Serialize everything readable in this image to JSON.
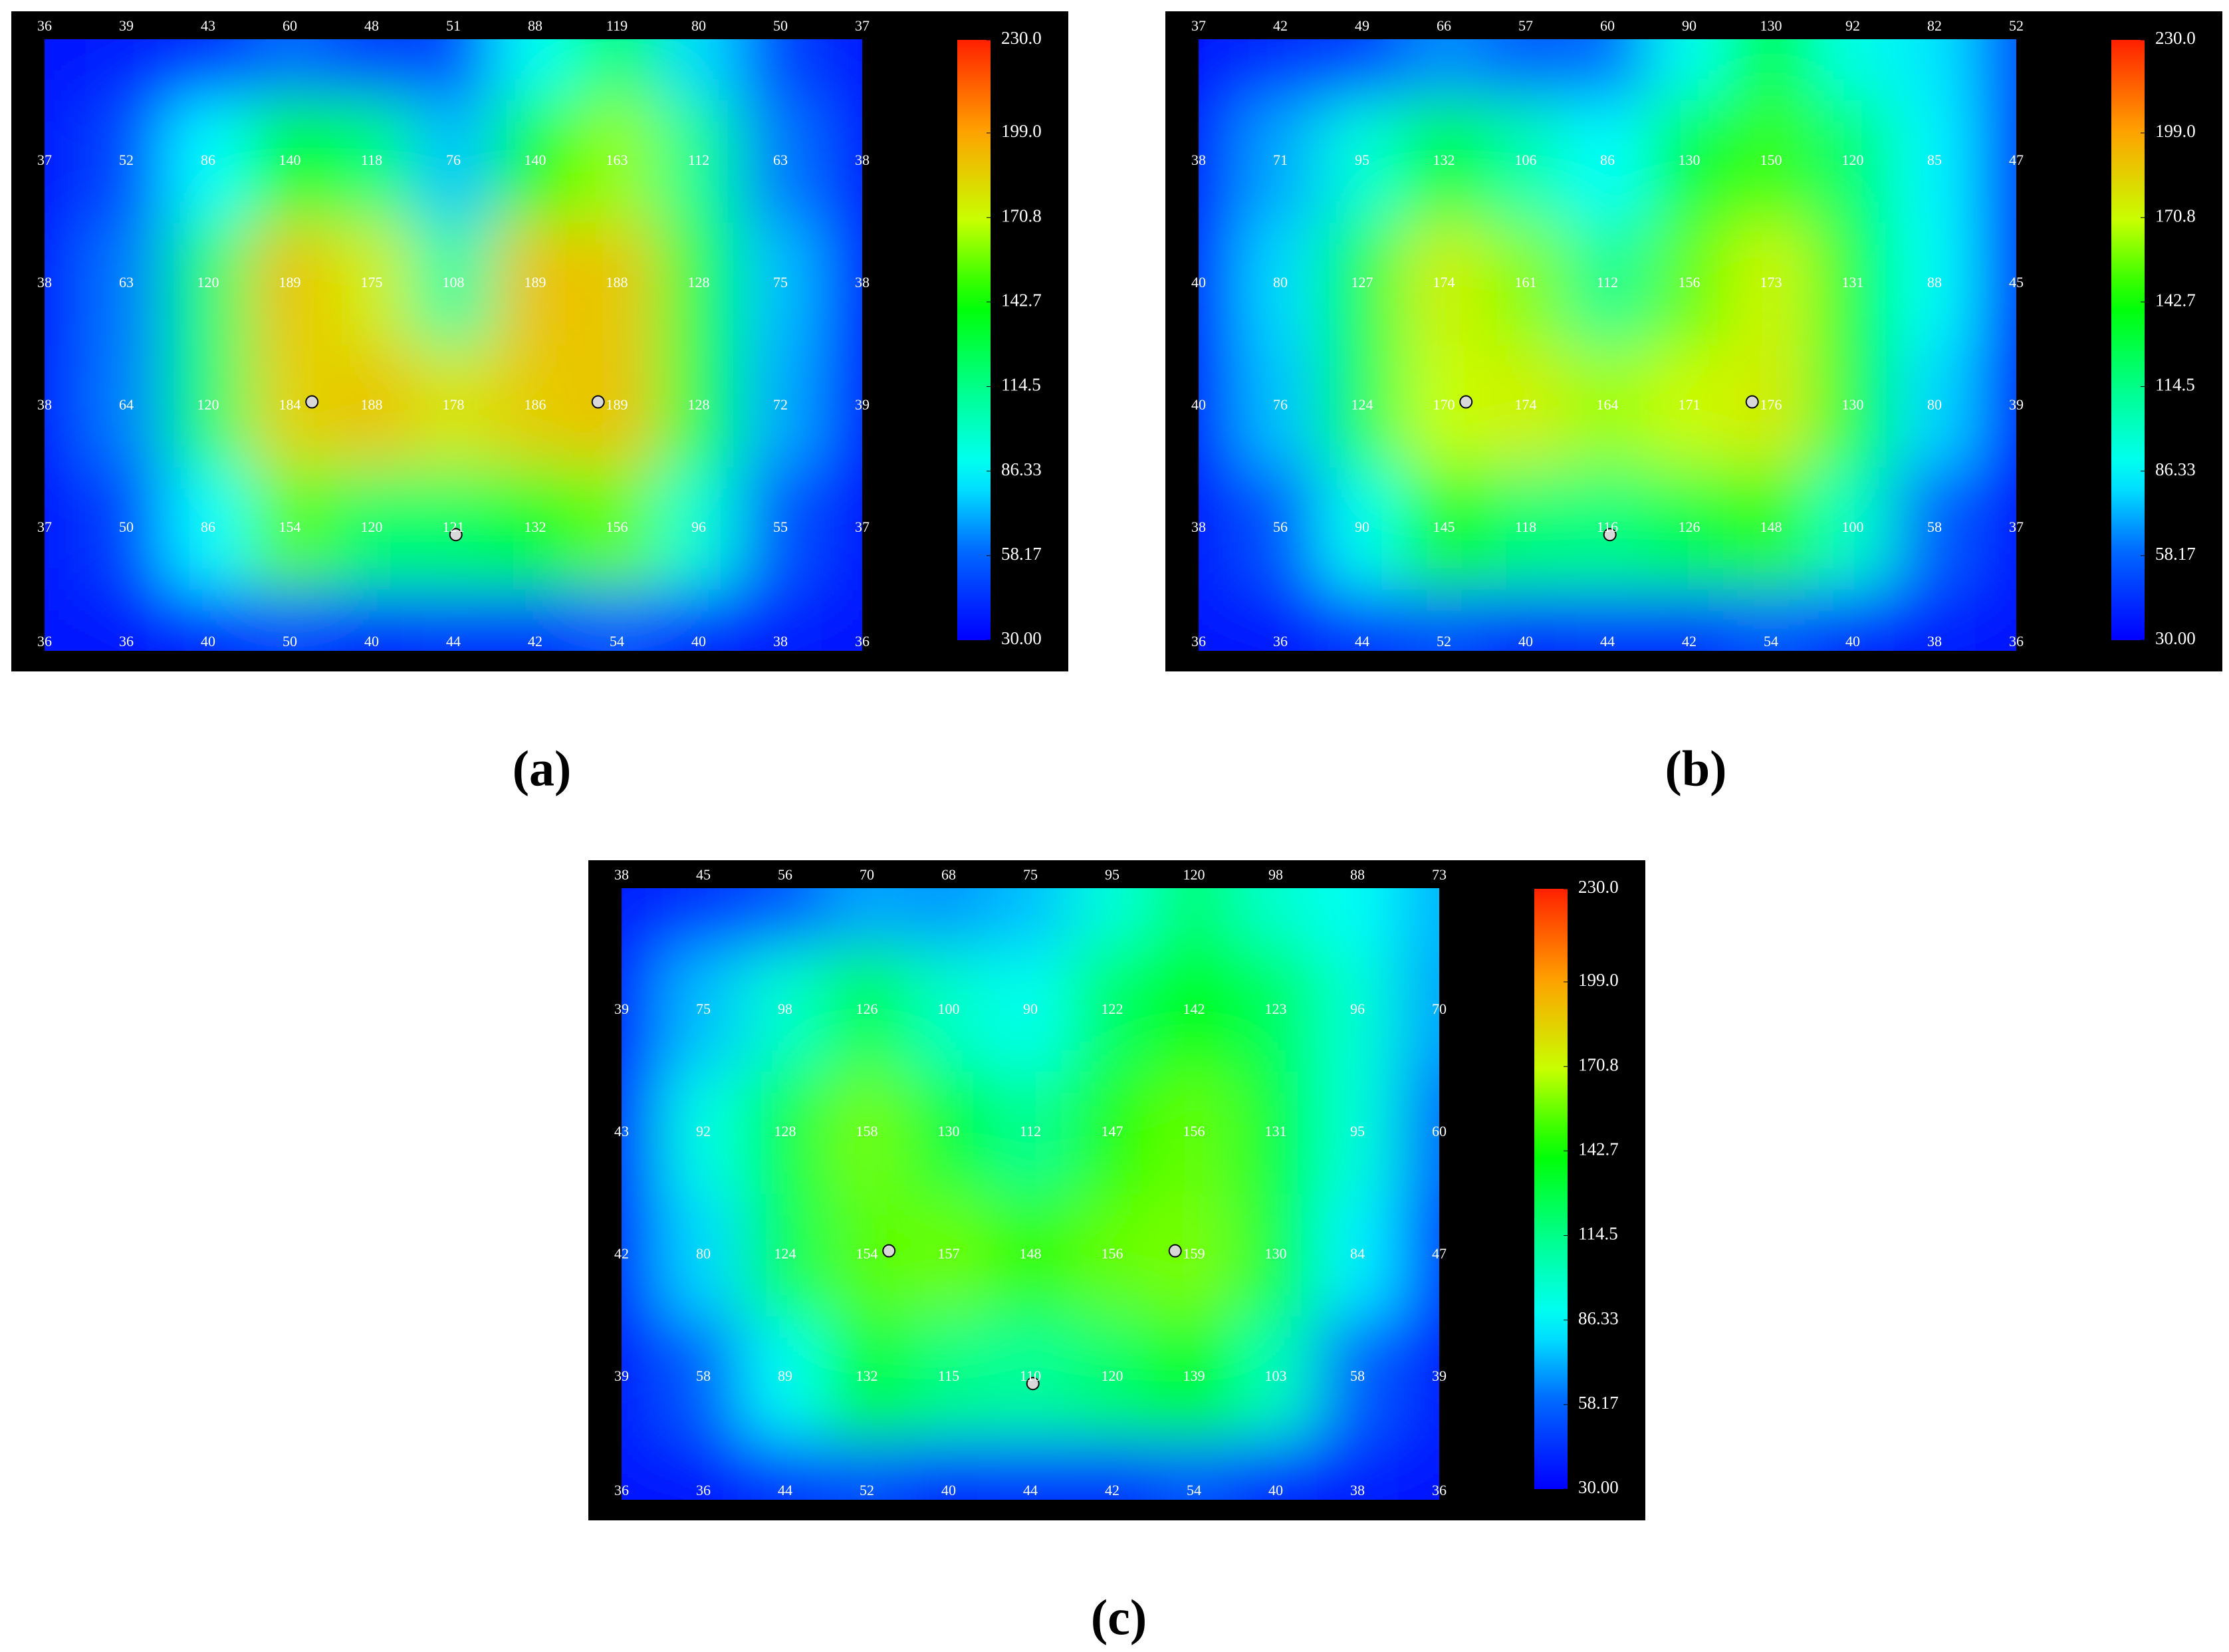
{
  "chart_data": [
    {
      "type": "heatmap",
      "title": "(a)",
      "z": [
        [
          36,
          39,
          43,
          60,
          48,
          51,
          88,
          119,
          80,
          50,
          37
        ],
        [
          37,
          52,
          86,
          140,
          118,
          76,
          140,
          163,
          112,
          63,
          38
        ],
        [
          38,
          63,
          120,
          189,
          175,
          108,
          189,
          188,
          128,
          75,
          38
        ],
        [
          38,
          64,
          120,
          184,
          188,
          178,
          186,
          189,
          128,
          72,
          39
        ],
        [
          37,
          50,
          86,
          154,
          120,
          121,
          132,
          156,
          96,
          55,
          37
        ],
        [
          36,
          36,
          40,
          50,
          40,
          44,
          42,
          54,
          40,
          38,
          36
        ]
      ],
      "zlim": [
        30,
        230
      ],
      "zticks": [
        {
          "value": 230,
          "label": "230.0"
        },
        {
          "value": 199,
          "label": "199.0"
        },
        170.8,
        142.7,
        114.5,
        86.33,
        58.17,
        {
          "value": 30,
          "label": "30.00"
        }
      ]
    },
    {
      "type": "heatmap",
      "title": "(b)",
      "z": [
        [
          37,
          42,
          49,
          66,
          57,
          60,
          90,
          130,
          92,
          82,
          52
        ],
        [
          38,
          71,
          95,
          132,
          106,
          86,
          130,
          150,
          120,
          85,
          47
        ],
        [
          40,
          80,
          127,
          174,
          161,
          112,
          156,
          173,
          131,
          88,
          45
        ],
        [
          40,
          76,
          124,
          170,
          174,
          164,
          171,
          176,
          130,
          80,
          39
        ],
        [
          38,
          56,
          90,
          145,
          118,
          116,
          126,
          148,
          100,
          58,
          37
        ],
        [
          36,
          36,
          44,
          52,
          40,
          44,
          42,
          54,
          40,
          38,
          36
        ]
      ],
      "zlim": [
        30,
        230
      ],
      "zticks": [
        {
          "value": 230,
          "label": "230.0"
        },
        {
          "value": 199,
          "label": "199.0"
        },
        170.8,
        142.7,
        114.5,
        86.33,
        58.17,
        {
          "value": 30,
          "label": "30.00"
        }
      ]
    },
    {
      "type": "heatmap",
      "title": "(c)",
      "z": [
        [
          38,
          45,
          56,
          70,
          68,
          75,
          95,
          120,
          98,
          88,
          73
        ],
        [
          39,
          75,
          98,
          126,
          100,
          90,
          122,
          142,
          123,
          96,
          70
        ],
        [
          43,
          92,
          128,
          158,
          130,
          112,
          147,
          156,
          131,
          95,
          60
        ],
        [
          42,
          80,
          124,
          154,
          157,
          148,
          156,
          159,
          130,
          84,
          47
        ],
        [
          39,
          58,
          89,
          132,
          115,
          110,
          120,
          139,
          103,
          58,
          39
        ],
        [
          36,
          36,
          44,
          52,
          40,
          44,
          42,
          54,
          40,
          38,
          36
        ]
      ],
      "zlim": [
        30,
        230
      ],
      "zticks": [
        {
          "value": 230,
          "label": "230.0"
        },
        {
          "value": 199,
          "label": "199.0"
        },
        170.8,
        142.7,
        114.5,
        86.33,
        58.17,
        {
          "value": 30,
          "label": "30.00"
        }
      ]
    }
  ]
}
